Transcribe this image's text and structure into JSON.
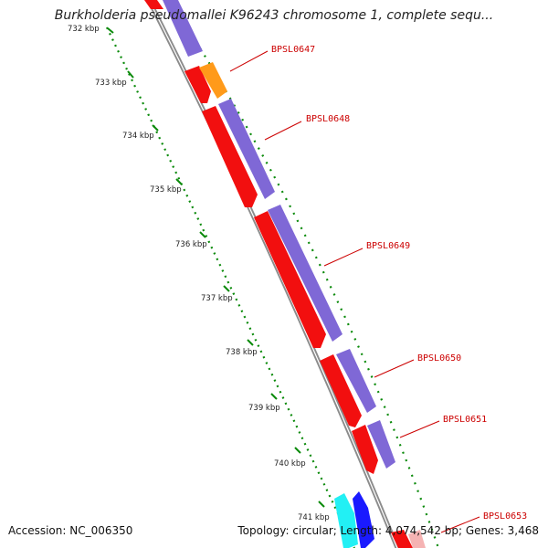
{
  "title": "Burkholderia pseudomallei K96243 chromosome 1, complete sequ...",
  "footer": {
    "accession": "Accession: NC_006350",
    "summary": "Topology: circular; Length: 4,074,542 bp; Genes: 3,468"
  },
  "colors": {
    "backbone": "#8c8c8c",
    "forward_gene": "#7f68d6",
    "reverse_gene": "#f20f0f",
    "orange_gene": "#ff9a1a",
    "cyan_gene": "#22f0f4",
    "blue_gene": "#1a1aff",
    "tick": "#0a8a0a",
    "label": "#cc0000"
  },
  "ticks": [
    {
      "label": "732 kbp"
    },
    {
      "label": "733 kbp"
    },
    {
      "label": "734 kbp"
    },
    {
      "label": "735 kbp"
    },
    {
      "label": "736 kbp"
    },
    {
      "label": "737 kbp"
    },
    {
      "label": "738 kbp"
    },
    {
      "label": "739 kbp"
    },
    {
      "label": "740 kbp"
    },
    {
      "label": "741 kbp"
    }
  ],
  "gene_labels": [
    {
      "name": "BPSL0647"
    },
    {
      "name": "BPSL0648"
    },
    {
      "name": "BPSL0649"
    },
    {
      "name": "BPSL0650"
    },
    {
      "name": "BPSL0651"
    },
    {
      "name": "BPSL0653"
    }
  ]
}
